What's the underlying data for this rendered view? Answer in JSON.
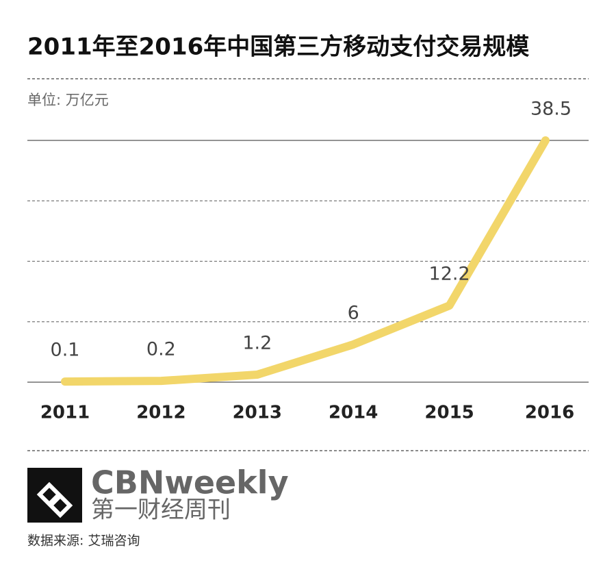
{
  "chart_data": {
    "type": "line",
    "title": "2011年至2016年中国第三方移动支付交易规模",
    "unit_label": "单位: 万亿元",
    "categories": [
      "2011",
      "2012",
      "2013",
      "2014",
      "2015",
      "2016"
    ],
    "values": [
      0.1,
      0.2,
      1.2,
      6,
      12.2,
      38.5
    ],
    "color": "#f2d66a",
    "ylim": [
      0,
      38.5
    ],
    "yticks": [
      0,
      9.625,
      19.25,
      28.875,
      38.5
    ],
    "grid": true,
    "brand": "CBNweekly",
    "brand_cn": "第一财经周刊",
    "source": "数据来源: 艾瑞咨询"
  }
}
